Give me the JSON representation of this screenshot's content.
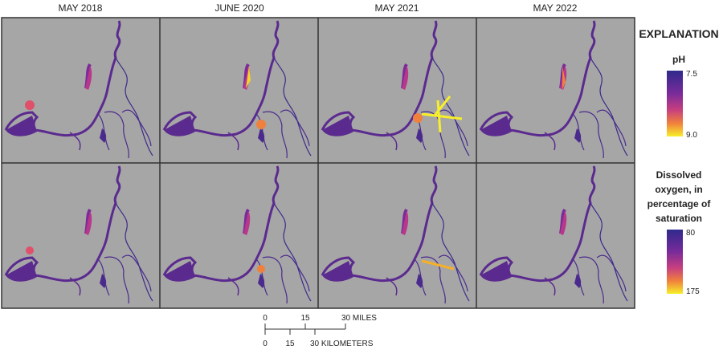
{
  "columns": [
    "MAY 2018",
    "JUNE 2020",
    "MAY 2021",
    "MAY 2022"
  ],
  "explanation": {
    "title": "EXPLANATION",
    "legends": [
      {
        "title_lines": [
          "pH"
        ],
        "top_label": "7.5",
        "bottom_label": "9.0"
      },
      {
        "title_lines": [
          "Dissolved",
          "oxygen, in",
          "percentage of",
          "saturation"
        ],
        "top_label": "80",
        "bottom_label": "175"
      }
    ]
  },
  "scale_bar": {
    "miles": [
      "0",
      "15",
      "30 MILES"
    ],
    "kilometers": [
      "0",
      "15",
      "30 KILOMETERS"
    ]
  }
}
